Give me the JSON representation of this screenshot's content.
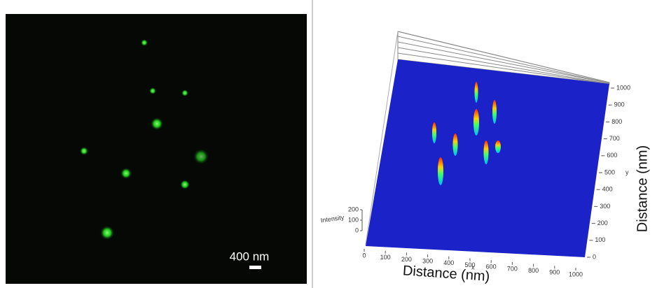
{
  "left_panel": {
    "scale_bar_label": "400 nm"
  },
  "right_panel": {
    "x_axis_title": "Distance (nm)",
    "y_axis_title": "Distance (nm)",
    "x_label": "x",
    "y_label": "y",
    "z_label": "Intensity",
    "x_ticks": [
      0,
      100,
      200,
      300,
      400,
      500,
      600,
      700,
      800,
      900,
      1000
    ],
    "y_ticks": [
      0,
      100,
      200,
      300,
      400,
      500,
      600,
      700,
      800,
      900,
      1000
    ],
    "z_ticks": [
      0,
      100,
      200
    ]
  }
}
